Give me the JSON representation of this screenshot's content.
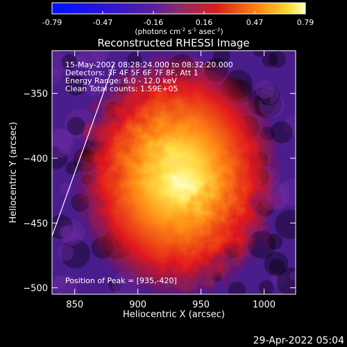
{
  "footer": {
    "timestamp": "29-Apr-2022 05:04"
  },
  "chart_data": {
    "type": "heatmap",
    "title": "Reconstructed RHESSI Image",
    "xlabel": "Heliocentric X (arcsec)",
    "ylabel": "Heliocentric Y (arcsec)",
    "xlim": [
      832,
      1025
    ],
    "ylim": [
      -505,
      -317
    ],
    "xticks": [
      850,
      900,
      950,
      1000
    ],
    "yticks": [
      -350,
      -400,
      -450,
      -500
    ],
    "colorbar": {
      "min": -0.79,
      "max": 0.79,
      "ticks": [
        "-0.79",
        "-0.47",
        "-0.16",
        "0.16",
        "0.47",
        "0.79"
      ],
      "units_label": "(photons cm",
      "units_exp1": "-2",
      "units_mid": " s",
      "units_exp2": "-1",
      "units_mid2": " asec",
      "units_exp3": "-2",
      "units_end": ")"
    },
    "annotations": [
      "15-May-2002 08:28:24.000 to 08:32:20.000",
      "Detectors: 3F 4F 5F 6F 7F 8F, Att 1",
      "Energy Range: 6.0 - 12.0 keV",
      "Clean     Total counts: 1.59E+05"
    ],
    "peak_label": "Position of Peak = [935,-420]",
    "peak": {
      "x": 935,
      "y": -420
    },
    "limb_line": {
      "x": [
        832,
        881
      ],
      "y": [
        -460,
        -327
      ]
    },
    "colors": {
      "background": "#000000",
      "negative": "#4a1d8c",
      "positive_mid": "#e0101a",
      "peak": "#ffffa8",
      "limb": "#ffffff"
    }
  }
}
